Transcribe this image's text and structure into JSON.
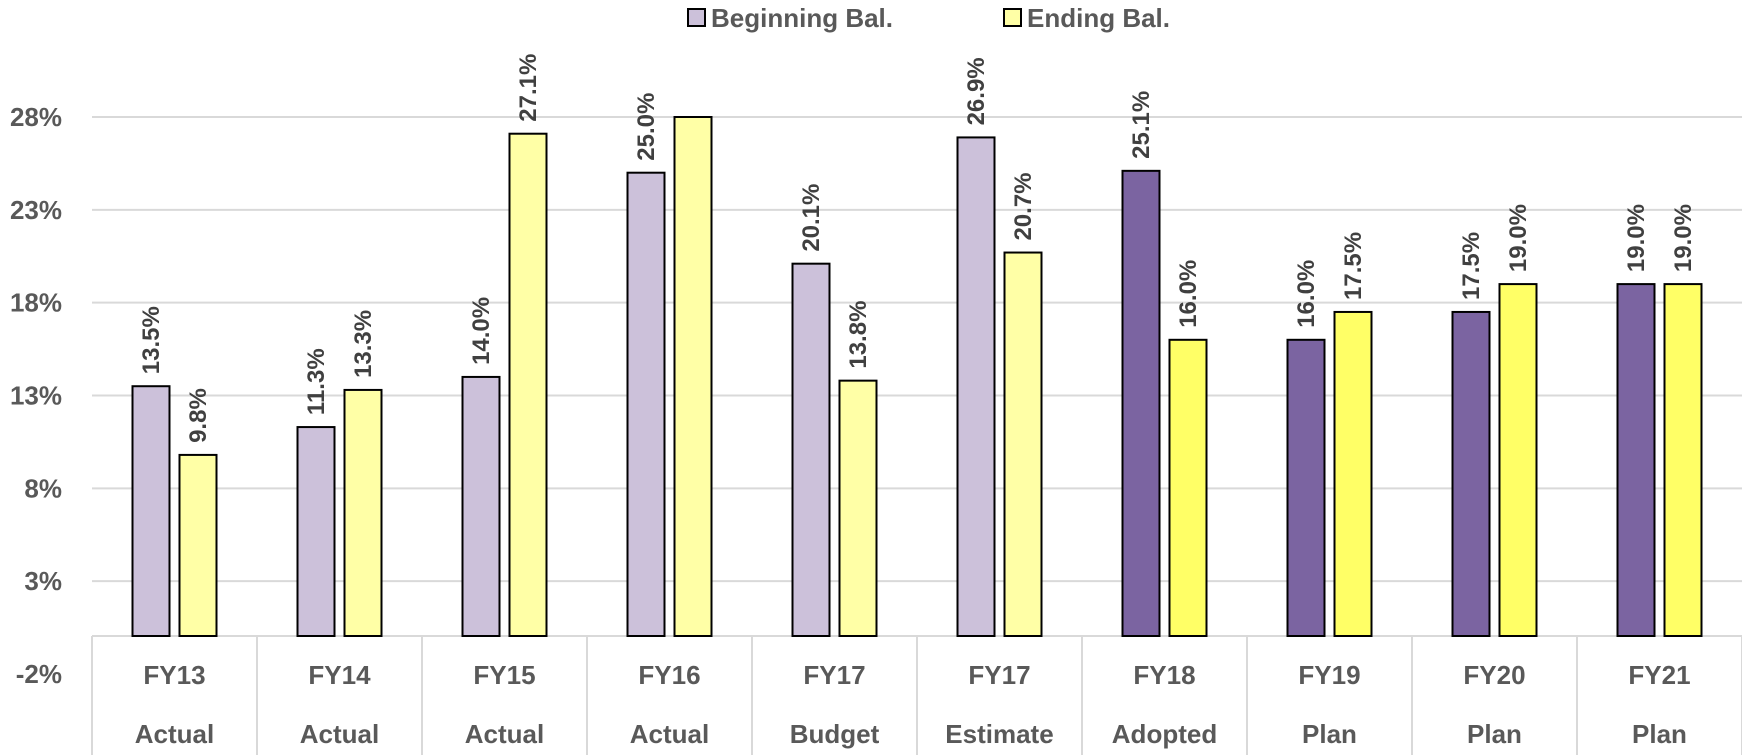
{
  "chart_data": {
    "type": "bar",
    "categories": [
      {
        "top": "FY13",
        "bottom": "Actual"
      },
      {
        "top": "FY14",
        "bottom": "Actual"
      },
      {
        "top": "FY15",
        "bottom": "Actual"
      },
      {
        "top": "FY16",
        "bottom": "Actual"
      },
      {
        "top": "FY17",
        "bottom": "Budget"
      },
      {
        "top": "FY17",
        "bottom": "Estimate"
      },
      {
        "top": "FY18",
        "bottom": "Adopted"
      },
      {
        "top": "FY19",
        "bottom": "Plan"
      },
      {
        "top": "FY20",
        "bottom": "Plan"
      },
      {
        "top": "FY21",
        "bottom": "Plan"
      }
    ],
    "series": [
      {
        "name": "Beginning Bal.",
        "values": [
          13.5,
          11.3,
          14.0,
          25.0,
          20.1,
          26.9,
          25.1,
          16.0,
          17.5,
          19.0
        ],
        "labels": [
          "13.5%",
          "11.3%",
          "14.0%",
          "25.0%",
          "20.1%",
          "26.9%",
          "25.1%",
          "16.0%",
          "17.5%",
          "19.0%"
        ],
        "color_light": "#ccc1da",
        "color_dark": "#7b64a1"
      },
      {
        "name": "Ending Bal.",
        "values": [
          9.8,
          13.3,
          27.1,
          28.0,
          13.8,
          20.7,
          16.0,
          17.5,
          19.0,
          19.0
        ],
        "labels": [
          "9.8%",
          "13.3%",
          "27.1%",
          "",
          "13.8%",
          "20.7%",
          "16.0%",
          "17.5%",
          "19.0%",
          "19.0%"
        ],
        "color_light": "#ffffa6",
        "color_dark": "#ffff66"
      }
    ],
    "dark_from_index": 6,
    "yticks": [
      {
        "value": 28,
        "label": "28%"
      },
      {
        "value": 23,
        "label": "23%"
      },
      {
        "value": 18,
        "label": "18%"
      },
      {
        "value": 13,
        "label": "13%"
      },
      {
        "value": 8,
        "label": "8%"
      },
      {
        "value": 3,
        "label": "3%"
      },
      {
        "value": -2,
        "label": "-2%"
      }
    ],
    "ylim": [
      -2,
      28
    ],
    "grid": true,
    "legend_position": "top"
  }
}
